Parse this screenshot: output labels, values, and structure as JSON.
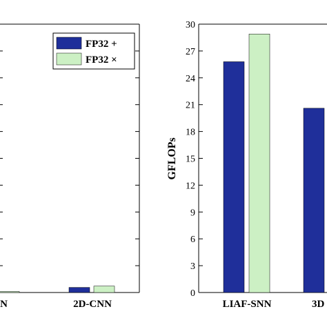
{
  "chart_data": [
    {
      "type": "bar",
      "categories": [
        "SNN",
        "2D-CNN"
      ],
      "series": [
        {
          "name": "FP32 +",
          "values": [
            0.0,
            0.57
          ]
        },
        {
          "name": "FP32 ×",
          "values": [
            0.12,
            0.72
          ]
        }
      ],
      "colors": [
        "#1f2f9a",
        "#ccf0c4"
      ],
      "legend": "top-right",
      "grid": false
    },
    {
      "type": "bar",
      "categories": [
        "LIAF-SNN",
        "3D"
      ],
      "series": [
        {
          "name": "FP32 +",
          "values": [
            25.8,
            20.6
          ]
        },
        {
          "name": "FP32 ×",
          "values": [
            28.9,
            null
          ]
        }
      ],
      "ylabel": "GFLOPs",
      "ylim": [
        0,
        30
      ],
      "yticks": [
        "0",
        "3",
        "6",
        "9",
        "12",
        "15",
        "18",
        "21",
        "24",
        "27",
        "30"
      ],
      "colors": [
        "#1f2f9a",
        "#ccf0c4"
      ],
      "grid": false
    }
  ]
}
